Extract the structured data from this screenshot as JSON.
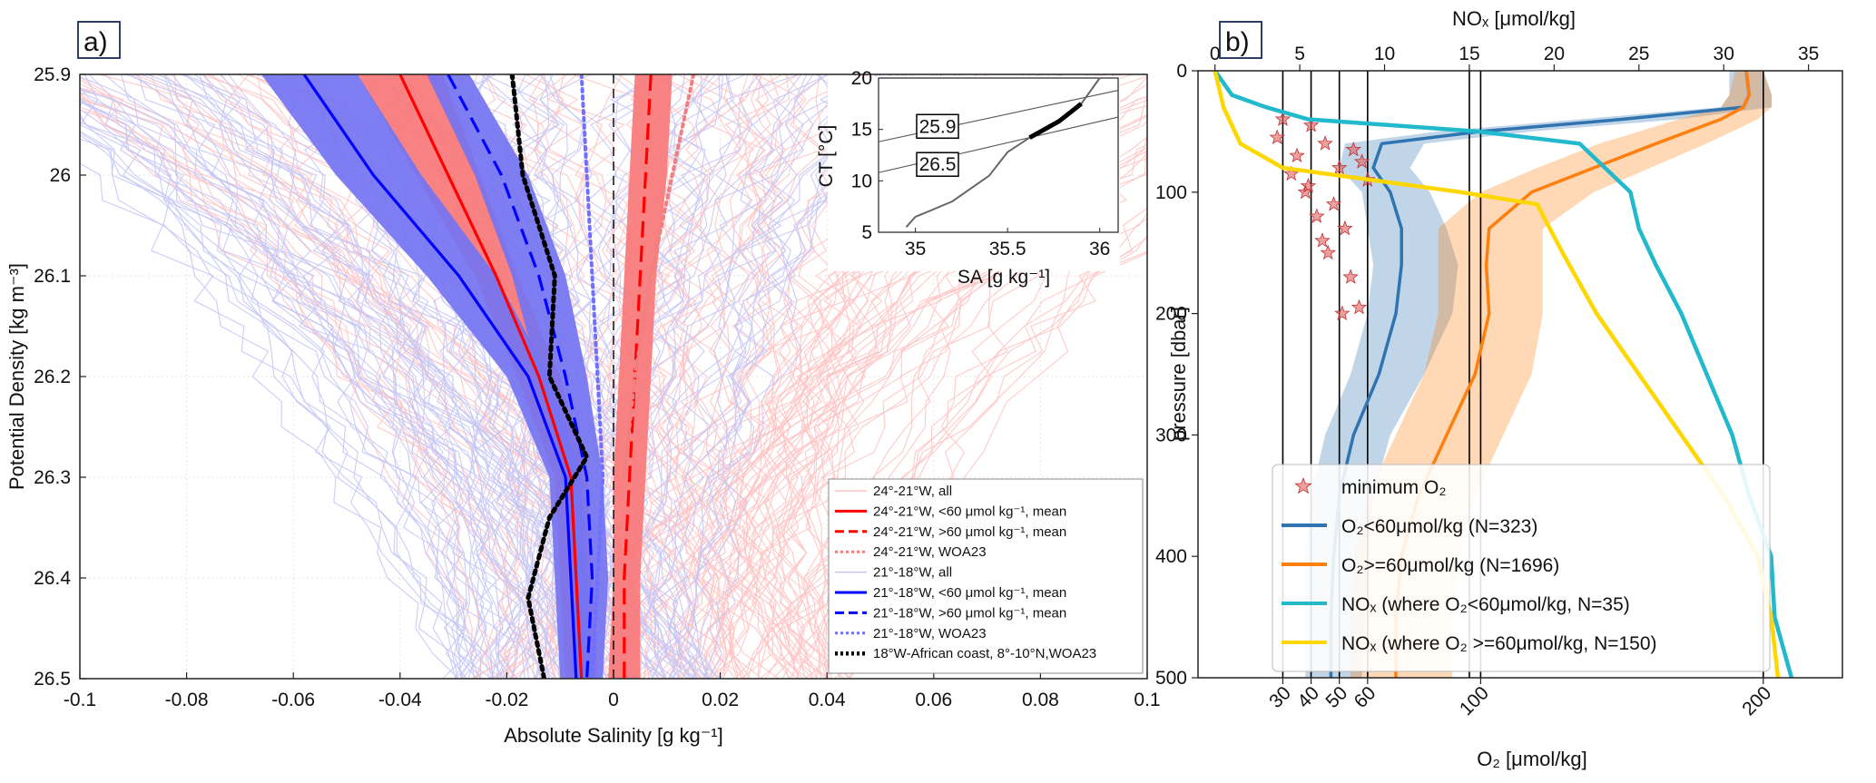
{
  "panel_a": {
    "tag": "a)",
    "chart_data": {
      "type": "line",
      "xlabel": "Absolute Salinity [g kg⁻¹]",
      "ylabel": "Potential Density [kg m⁻³]",
      "xlim": [
        -0.1,
        0.1
      ],
      "ylim": [
        25.9,
        26.5
      ],
      "y_inverted": true,
      "grid": true,
      "x_ticks": [
        "-0.1",
        "-0.08",
        "-0.06",
        "-0.04",
        "-0.02",
        "0",
        "0.02",
        "0.04",
        "0.06",
        "0.08",
        "0.1"
      ],
      "y_ticks": [
        "25.9",
        "26",
        "26.1",
        "26.2",
        "26.3",
        "26.4",
        "26.5"
      ],
      "legend_position": "bottom-right",
      "series": [
        {
          "name": "24°-21°W, all",
          "color": "#ffc4c4",
          "style": "thin"
        },
        {
          "name": "24°-21°W, <60 μmol kg⁻¹, mean",
          "color": "#ff0000",
          "style": "solid",
          "y": [
            25.9,
            26.0,
            26.1,
            26.2,
            26.3,
            26.4,
            26.5
          ],
          "x": [
            -0.04,
            -0.031,
            -0.022,
            -0.014,
            -0.008,
            -0.007,
            -0.006
          ],
          "band": [
            [
              -0.048,
              -0.032
            ],
            [
              -0.037,
              -0.025
            ],
            [
              -0.026,
              -0.018
            ],
            [
              -0.018,
              -0.01
            ],
            [
              -0.011,
              -0.005
            ],
            [
              -0.01,
              -0.004
            ],
            [
              -0.009,
              -0.003
            ]
          ]
        },
        {
          "name": "24°-21°W, >60 μmol kg⁻¹, mean",
          "color": "#ff0000",
          "style": "dashed",
          "y": [
            25.9,
            26.0,
            26.1,
            26.2,
            26.3,
            26.4,
            26.5
          ],
          "x": [
            0.007,
            0.006,
            0.005,
            0.004,
            0.003,
            0.002,
            0.002
          ],
          "band": [
            [
              0.004,
              0.011
            ],
            [
              0.003,
              0.01
            ],
            [
              0.002,
              0.008
            ],
            [
              0.001,
              0.007
            ],
            [
              0.0,
              0.006
            ],
            [
              0.0,
              0.005
            ],
            [
              -0.001,
              0.005
            ]
          ]
        },
        {
          "name": "24°-21°W, WOA23",
          "color": "#f08080",
          "style": "dotted",
          "y": [
            25.9,
            26.0,
            26.1,
            26.2,
            26.3
          ],
          "x": [
            0.015,
            0.011,
            0.007,
            0.004,
            0.002
          ]
        },
        {
          "name": "21°-18°W, all",
          "color": "#c6c6f5",
          "style": "thin"
        },
        {
          "name": "21°-18°W, <60 μmol kg⁻¹, mean",
          "color": "#0000ff",
          "style": "solid",
          "y": [
            25.9,
            26.0,
            26.1,
            26.2,
            26.3,
            26.4,
            26.5
          ],
          "x": [
            -0.058,
            -0.045,
            -0.029,
            -0.016,
            -0.009,
            -0.008,
            -0.007
          ],
          "band": [
            [
              -0.066,
              -0.048
            ],
            [
              -0.052,
              -0.036
            ],
            [
              -0.035,
              -0.022
            ],
            [
              -0.02,
              -0.012
            ],
            [
              -0.012,
              -0.006
            ],
            [
              -0.011,
              -0.005
            ],
            [
              -0.01,
              -0.004
            ]
          ]
        },
        {
          "name": "21°-18°W, >60 μmol kg⁻¹, mean",
          "color": "#0000ff",
          "style": "dashed",
          "y": [
            25.9,
            26.0,
            26.1,
            26.2,
            26.3,
            26.4,
            26.5
          ],
          "x": [
            -0.031,
            -0.021,
            -0.014,
            -0.009,
            -0.005,
            -0.004,
            -0.005
          ],
          "band": [
            [
              -0.035,
              -0.027
            ],
            [
              -0.026,
              -0.016
            ],
            [
              -0.019,
              -0.009
            ],
            [
              -0.014,
              -0.005
            ],
            [
              -0.009,
              -0.002
            ],
            [
              -0.007,
              -0.001
            ],
            [
              -0.008,
              -0.002
            ]
          ]
        },
        {
          "name": "21°-18°W, WOA23",
          "color": "#7070ff",
          "style": "dotted",
          "y": [
            25.9,
            26.0,
            26.1,
            26.2,
            26.3,
            26.4,
            26.5
          ],
          "x": [
            -0.006,
            -0.005,
            -0.004,
            -0.003,
            -0.002,
            -0.003,
            -0.004
          ]
        },
        {
          "name": "18°W-African coast, 8°-10°N,WOA23",
          "color": "#000000",
          "style": "dotted-thick",
          "y": [
            25.9,
            26.0,
            26.1,
            26.2,
            26.28,
            26.34,
            26.42,
            26.5
          ],
          "x": [
            -0.019,
            -0.017,
            -0.011,
            -0.012,
            -0.005,
            -0.012,
            -0.016,
            -0.013
          ]
        }
      ],
      "inset": {
        "xlabel": "SA [g kg⁻¹]",
        "ylabel": "CT [°C]",
        "xlim": [
          34.8,
          36.1
        ],
        "ylim": [
          5,
          20
        ],
        "x_ticks": [
          "35",
          "35.5",
          "36"
        ],
        "y_ticks": [
          "5",
          "10",
          "15",
          "20"
        ],
        "isopycnal_labels": [
          "25.9",
          "26.5"
        ],
        "ts_curve": {
          "sa": [
            34.95,
            35.0,
            35.2,
            35.4,
            35.5,
            35.62,
            35.78,
            35.9,
            36.0
          ],
          "ct": [
            5.5,
            6.5,
            8.0,
            10.5,
            12.8,
            14.2,
            15.8,
            17.5,
            20.0
          ]
        },
        "highlight": {
          "sa": [
            35.62,
            35.78,
            35.9
          ],
          "ct": [
            14.2,
            15.8,
            17.5
          ]
        }
      }
    }
  },
  "panel_b": {
    "tag": "b)",
    "chart_data": {
      "type": "line",
      "xlabel_bottom": "O₂ [μmol/kg]",
      "xlabel_top": "NOₓ [μmol/kg]",
      "ylabel": "pressure [dbar]",
      "ylim": [
        0,
        500
      ],
      "y_inverted": true,
      "o2_lim": [
        0,
        228
      ],
      "nox_lim": [
        -1,
        37
      ],
      "o2_ticks": [
        "30",
        "40",
        "50",
        "60",
        "100",
        "200"
      ],
      "nox_ticks": [
        "0",
        "5",
        "10",
        "15",
        "20",
        "25",
        "30",
        "35"
      ],
      "y_ticks": [
        "0",
        "100",
        "200",
        "300",
        "400",
        "500"
      ],
      "legend_position": "bottom-left",
      "series": [
        {
          "name": "minimum O₂",
          "type": "scatter",
          "color": "#e06060",
          "o2": [
            28,
            35,
            40,
            45,
            50,
            55,
            60,
            30,
            38,
            48,
            52,
            58,
            42,
            33,
            46,
            54,
            57,
            44,
            39,
            51
          ],
          "p": [
            55,
            70,
            45,
            60,
            80,
            65,
            90,
            40,
            100,
            110,
            130,
            75,
            120,
            85,
            150,
            170,
            195,
            140,
            95,
            200
          ]
        },
        {
          "name": "O₂<60μmol/kg (N=323)",
          "color": "#2f74b0",
          "axis": "o2",
          "p": [
            0,
            20,
            30,
            40,
            50,
            60,
            80,
            100,
            130,
            160,
            200,
            250,
            300,
            350,
            400,
            450,
            500
          ],
          "o2": [
            194,
            195,
            193,
            150,
            100,
            65,
            62,
            68,
            72,
            72,
            70,
            64,
            55,
            50,
            48,
            47,
            47
          ],
          "band": [
            [
              188,
              200
            ],
            [
              188,
              203
            ],
            [
              185,
              203
            ],
            [
              135,
              170
            ],
            [
              85,
              118
            ],
            [
              52,
              80
            ],
            [
              50,
              75
            ],
            [
              58,
              82
            ],
            [
              60,
              88
            ],
            [
              62,
              92
            ],
            [
              60,
              90
            ],
            [
              54,
              80
            ],
            [
              45,
              68
            ],
            [
              40,
              62
            ],
            [
              38,
              60
            ],
            [
              38,
              59
            ],
            [
              38,
              58
            ]
          ]
        },
        {
          "name": "O₂>=60μmol/kg (N=1696)",
          "color": "#ff7f0e",
          "axis": "o2",
          "p": [
            0,
            20,
            30,
            40,
            60,
            80,
            100,
            130,
            160,
            200,
            250,
            300,
            350,
            400,
            450,
            500
          ],
          "o2": [
            194,
            195,
            193,
            185,
            162,
            140,
            118,
            103,
            102,
            103,
            98,
            88,
            78,
            72,
            70,
            70
          ],
          "band": [
            [
              190,
              200
            ],
            [
              188,
              203
            ],
            [
              185,
              203
            ],
            [
              170,
              198
            ],
            [
              142,
              180
            ],
            [
              120,
              160
            ],
            [
              100,
              140
            ],
            [
              85,
              122
            ],
            [
              85,
              122
            ],
            [
              85,
              122
            ],
            [
              80,
              118
            ],
            [
              70,
              108
            ],
            [
              60,
              98
            ],
            [
              55,
              92
            ],
            [
              54,
              90
            ],
            [
              54,
              90
            ]
          ]
        },
        {
          "name": "NOₓ (where O₂<60μmol/kg, N=35)",
          "color": "#22b9cc",
          "axis": "nox",
          "p": [
            0,
            20,
            30,
            40,
            50,
            60,
            80,
            100,
            130,
            160,
            200,
            250,
            300,
            350,
            400,
            450,
            500
          ],
          "nox": [
            0,
            1.0,
            3.0,
            5.5,
            15.5,
            21.5,
            23.0,
            24.5,
            25.0,
            26.0,
            27.5,
            29.0,
            30.5,
            31.5,
            32.8,
            33.0,
            34.0
          ]
        },
        {
          "name": "NOₓ (where O₂ >=60μmol/kg, N=150)",
          "color": "#ffd700",
          "axis": "nox",
          "p": [
            0,
            30,
            60,
            80,
            100,
            110,
            150,
            200,
            250,
            300,
            350,
            400,
            450,
            500
          ],
          "nox": [
            0,
            0.5,
            1.5,
            4.0,
            14.5,
            19.0,
            20.5,
            22.5,
            25.0,
            27.5,
            30.0,
            32.0,
            32.8,
            33.2
          ]
        }
      ],
      "reference_lines_o2": [
        30,
        40,
        50,
        60,
        100,
        200
      ],
      "reference_lines_nox": [
        15
      ]
    }
  }
}
